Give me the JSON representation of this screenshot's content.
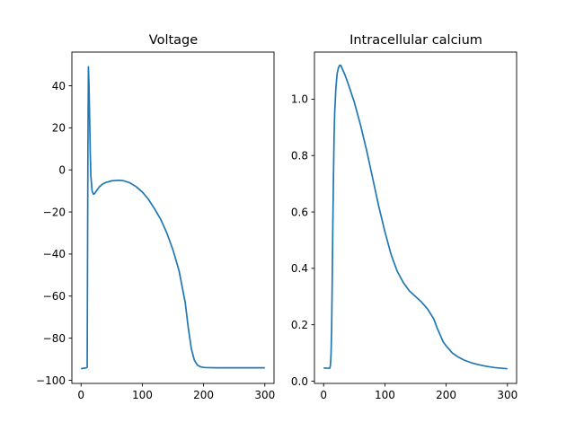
{
  "chart_data": [
    {
      "type": "line",
      "title": "Voltage",
      "xlabel": "",
      "ylabel": "",
      "xlim": [
        -15,
        315
      ],
      "ylim": [
        -101.5,
        56
      ],
      "xticks": [
        0,
        100,
        200,
        300
      ],
      "yticks": [
        -100,
        -80,
        -60,
        -40,
        -20,
        0,
        20,
        40
      ],
      "tick_labels_x": [
        "0",
        "100",
        "200",
        "300"
      ],
      "tick_labels_y": [
        "−100",
        "−80",
        "−60",
        "−40",
        "−20",
        "0",
        "20",
        "40"
      ],
      "grid": false,
      "color": "#1f77b4",
      "series": [
        {
          "x": [
            0,
            4,
            8,
            9,
            10,
            10.6,
            11.2,
            12,
            13,
            14,
            15,
            16,
            18,
            20,
            22,
            25,
            30,
            35,
            40,
            50,
            60,
            65,
            70,
            80,
            90,
            100,
            110,
            120,
            130,
            140,
            150,
            160,
            170,
            175,
            180,
            185,
            190,
            195,
            200,
            205,
            210,
            220,
            230,
            240,
            260,
            280,
            300
          ],
          "y": [
            -94.5,
            -94.3,
            -94.1,
            -94.0,
            -93.8,
            -40,
            10,
            49,
            40,
            25,
            8,
            -3,
            -10,
            -11.5,
            -11.3,
            -10,
            -8,
            -6.8,
            -6,
            -5.2,
            -5,
            -5,
            -5.2,
            -6.2,
            -8,
            -10.5,
            -14,
            -18.5,
            -23.5,
            -30,
            -38,
            -48,
            -63,
            -75,
            -85,
            -90.5,
            -92.8,
            -93.6,
            -93.9,
            -94.0,
            -94.0,
            -94.1,
            -94.1,
            -94.1,
            -94.1,
            -94.1,
            -94.1
          ]
        }
      ]
    },
    {
      "type": "line",
      "title": "Intracellular calcium",
      "xlabel": "",
      "ylabel": "",
      "xlim": [
        -15,
        315
      ],
      "ylim": [
        -0.008,
        1.167
      ],
      "xticks": [
        0,
        100,
        200,
        300
      ],
      "yticks": [
        0.0,
        0.2,
        0.4,
        0.6,
        0.8,
        1.0
      ],
      "tick_labels_x": [
        "0",
        "100",
        "200",
        "300"
      ],
      "tick_labels_y": [
        "0.0",
        "0.2",
        "0.4",
        "0.6",
        "0.8",
        "1.0"
      ],
      "grid": false,
      "color": "#1f77b4",
      "series": [
        {
          "x": [
            0,
            5,
            10,
            11,
            12,
            13,
            14,
            15,
            16,
            17,
            18,
            20,
            22,
            24,
            26,
            28,
            30,
            35,
            40,
            50,
            60,
            70,
            80,
            90,
            100,
            110,
            120,
            130,
            140,
            150,
            160,
            170,
            180,
            185,
            190,
            195,
            200,
            210,
            220,
            230,
            240,
            250,
            260,
            270,
            280,
            290,
            300
          ],
          "y": [
            0.047,
            0.046,
            0.046,
            0.055,
            0.09,
            0.18,
            0.35,
            0.55,
            0.72,
            0.86,
            0.95,
            1.04,
            1.09,
            1.11,
            1.12,
            1.12,
            1.11,
            1.085,
            1.055,
            0.99,
            0.91,
            0.82,
            0.72,
            0.62,
            0.53,
            0.45,
            0.39,
            0.35,
            0.32,
            0.3,
            0.28,
            0.255,
            0.22,
            0.19,
            0.165,
            0.14,
            0.125,
            0.1,
            0.085,
            0.074,
            0.066,
            0.06,
            0.055,
            0.051,
            0.048,
            0.046,
            0.044
          ]
        }
      ]
    }
  ]
}
